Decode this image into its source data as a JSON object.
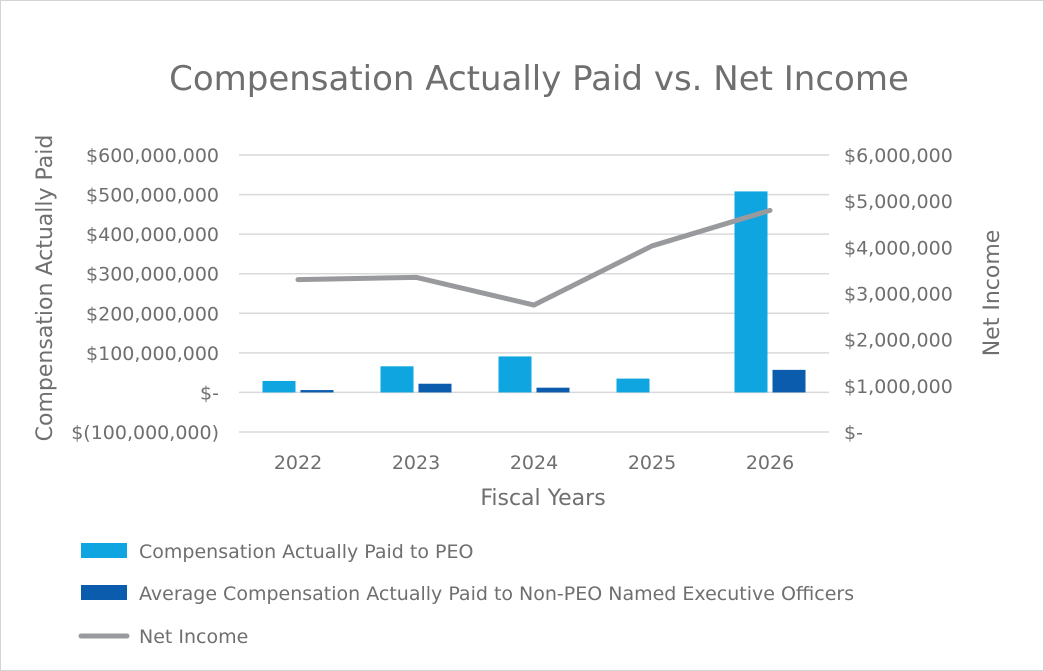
{
  "chart_data": {
    "type": "bar",
    "title": "Compensation Actually Paid vs. Net Income",
    "xlabel": "Fiscal Years",
    "ylabel": "Compensation Actually Paid",
    "y2label": "Net Income",
    "categories": [
      "2022",
      "2023",
      "2024",
      "2025",
      "2026"
    ],
    "ylim": [
      -100000000,
      600000000
    ],
    "y2lim": [
      0,
      6000000
    ],
    "yticks": [
      -100000000,
      0,
      100000000,
      200000000,
      300000000,
      400000000,
      500000000,
      600000000
    ],
    "ytick_labels": [
      "$(100,000,000)",
      "$-",
      "$100,000,000",
      "$200,000,000",
      "$300,000,000",
      "$400,000,000",
      "$500,000,000",
      "$600,000,000"
    ],
    "y2ticks": [
      0,
      1000000,
      2000000,
      3000000,
      4000000,
      5000000,
      6000000
    ],
    "y2tick_labels": [
      "$-",
      "$1,000,000",
      "$2,000,000",
      "$3,000,000",
      "$4,000,000",
      "$5,000,000",
      "$6,000,000"
    ],
    "series": [
      {
        "name": "Compensation Actually Paid to PEO",
        "type": "bar",
        "axis": "left",
        "color": "#0ea5e0",
        "values": [
          29000000,
          66000000,
          91000000,
          35000000,
          508000000
        ]
      },
      {
        "name": "Average Compensation Actually Paid to Non-PEO Named Executive Officers",
        "type": "bar",
        "axis": "left",
        "color": "#0b5cad",
        "values": [
          6000000,
          22000000,
          12000000,
          0,
          57000000
        ]
      },
      {
        "name": "Net Income",
        "type": "line",
        "axis": "right",
        "color": "#999a9d",
        "values": [
          3300000,
          3350000,
          2750000,
          4030000,
          4800000
        ]
      }
    ],
    "grid": true,
    "legend": "bottom-left"
  }
}
